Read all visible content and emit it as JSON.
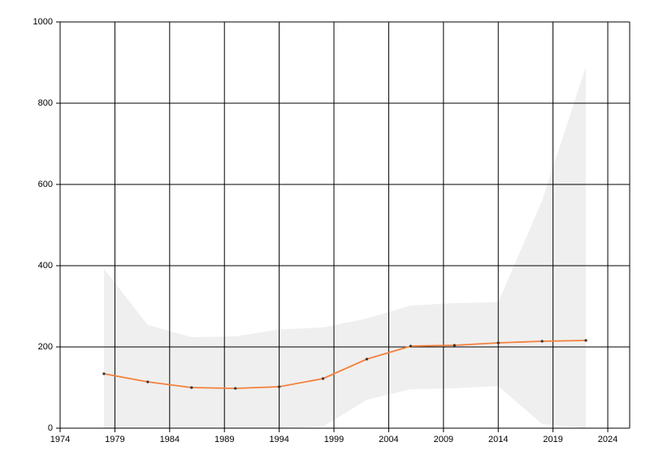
{
  "chart_data": {
    "type": "line",
    "x": [
      1978,
      1982,
      1986,
      1990,
      1994,
      1998,
      2002,
      2006,
      2010,
      2014,
      2018,
      2022
    ],
    "series": [
      {
        "color": "#f4803c",
        "values": [
          134,
          114,
          100,
          98,
          102,
          122,
          170,
          202,
          204,
          210,
          214,
          216
        ]
      }
    ],
    "band": {
      "color": "#efefef",
      "upper": [
        392,
        254,
        224,
        226,
        243,
        248,
        270,
        302,
        308,
        310,
        560,
        890
      ],
      "lower": [
        0,
        0,
        0,
        0,
        0,
        4,
        70,
        96,
        98,
        104,
        10,
        0
      ]
    },
    "xlim": [
      1974,
      2026
    ],
    "xticks": [
      1974,
      1979,
      1984,
      1989,
      1994,
      1999,
      2004,
      2009,
      2014,
      2019,
      2024
    ],
    "ylim": [
      0,
      1000
    ],
    "yticks": [
      0,
      200,
      400,
      600,
      800,
      1000
    ],
    "grid": true
  }
}
